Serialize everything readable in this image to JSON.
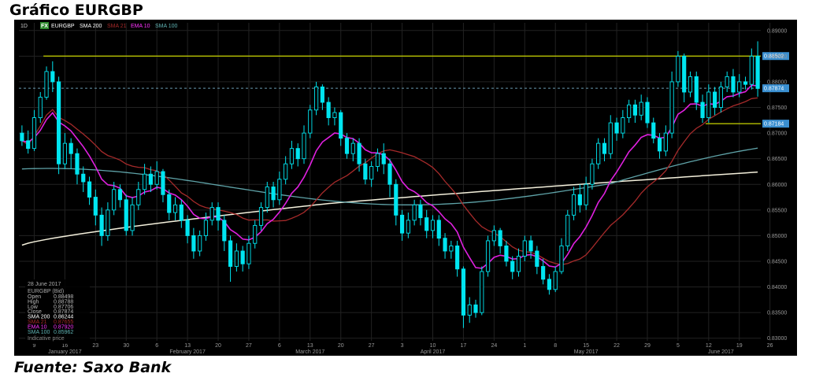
{
  "page": {
    "title": "Gráfico EURGBP",
    "source": "Fuente: Saxo Bank"
  },
  "toolbar": {
    "timeframe": "1D",
    "fx_badge": "FX",
    "symbol": "EURGBP",
    "indicators": [
      {
        "label": "SMA 200",
        "color": "#ffffff"
      },
      {
        "label": "SMA 21",
        "color": "#a52a2a"
      },
      {
        "label": "EMA 10",
        "color": "#ff33ff"
      },
      {
        "label": "SMA 100",
        "color": "#5fb3b3"
      }
    ]
  },
  "info_panel": {
    "date": "28 June 2017",
    "instrument": "EURGBP (Bid)",
    "rows": [
      {
        "label": "Open",
        "value": "0.88498",
        "color": "#bbbbbb"
      },
      {
        "label": "High",
        "value": "0.88788",
        "color": "#bbbbbb"
      },
      {
        "label": "Low",
        "value": "0.87706",
        "color": "#bbbbbb"
      },
      {
        "label": "Close",
        "value": "0.87874",
        "color": "#bbbbbb"
      },
      {
        "label": "SMA 200",
        "value": "0.86244",
        "color": "#ffffff"
      },
      {
        "label": "SMA 21",
        "value": "0.87655",
        "color": "#a52a2a"
      },
      {
        "label": "EMA 10",
        "value": "0.87920",
        "color": "#ff33ff"
      },
      {
        "label": "SMA 100",
        "value": "0.85962",
        "color": "#5fb3b3"
      }
    ],
    "footer": "Indicative price"
  },
  "price_tags": [
    {
      "label": "0.88502",
      "value": 0.88502
    },
    {
      "label": "0.87874",
      "value": 0.87874
    },
    {
      "label": "0.87184",
      "value": 0.87184
    }
  ],
  "colors": {
    "background": "#000000",
    "candle": "#00e5f0",
    "hline": "#c8d400",
    "sma200": "#f4f0dc",
    "sma21": "#a52a2a",
    "ema10": "#e020e0",
    "sma100": "#5fa3a8",
    "grid": "#222222"
  },
  "chart_data": {
    "type": "candlestick",
    "title": "Gráfico EURGBP",
    "ylim": [
      0.8295,
      0.8915
    ],
    "y_ticks": [
      "0.89000",
      "0.88500",
      "0.88000",
      "0.87500",
      "0.87000",
      "0.86500",
      "0.86000",
      "0.85500",
      "0.85000",
      "0.84500",
      "0.84000",
      "0.83500",
      "0.83000"
    ],
    "y_tick_values": [
      0.89,
      0.885,
      0.88,
      0.875,
      0.87,
      0.865,
      0.86,
      0.855,
      0.85,
      0.845,
      0.84,
      0.835,
      0.83
    ],
    "x_tick_labels": [
      {
        "label": "9",
        "i": 2
      },
      {
        "label": "16",
        "i": 7
      },
      {
        "label": "23",
        "i": 12
      },
      {
        "label": "30",
        "i": 17
      },
      {
        "label": "6",
        "i": 22
      },
      {
        "label": "13",
        "i": 27
      },
      {
        "label": "20",
        "i": 32
      },
      {
        "label": "27",
        "i": 37
      },
      {
        "label": "6",
        "i": 42
      },
      {
        "label": "13",
        "i": 47
      },
      {
        "label": "20",
        "i": 52
      },
      {
        "label": "27",
        "i": 57
      },
      {
        "label": "3",
        "i": 62
      },
      {
        "label": "10",
        "i": 67
      },
      {
        "label": "17",
        "i": 72
      },
      {
        "label": "24",
        "i": 77
      },
      {
        "label": "1",
        "i": 82
      },
      {
        "label": "8",
        "i": 87
      },
      {
        "label": "15",
        "i": 92
      },
      {
        "label": "22",
        "i": 97
      },
      {
        "label": "29",
        "i": 102
      },
      {
        "label": "5",
        "i": 107
      },
      {
        "label": "12",
        "i": 112
      },
      {
        "label": "19",
        "i": 117
      },
      {
        "label": "26",
        "i": 122
      }
    ],
    "month_labels": [
      {
        "label": "January 2017",
        "i": 7
      },
      {
        "label": "February 2017",
        "i": 27
      },
      {
        "label": "March 2017",
        "i": 47
      },
      {
        "label": "April 2017",
        "i": 67
      },
      {
        "label": "May 2017",
        "i": 92
      },
      {
        "label": "June 2017",
        "i": 114
      }
    ],
    "horizontal_lines": [
      {
        "value": 0.88502,
        "from_i": 4,
        "label": "0.88502"
      },
      {
        "value": 0.87184,
        "from_i": 112,
        "label": "0.87184"
      }
    ],
    "dashed_line": {
      "value": 0.87874,
      "label": "0.87874"
    },
    "candles": [
      [
        0.87,
        0.8685,
        0.8715,
        0.8675
      ],
      [
        0.8685,
        0.867,
        0.8705,
        0.866
      ],
      [
        0.867,
        0.873,
        0.8745,
        0.8665
      ],
      [
        0.873,
        0.877,
        0.878,
        0.872
      ],
      [
        0.877,
        0.882,
        0.883,
        0.8765
      ],
      [
        0.882,
        0.88,
        0.884,
        0.878
      ],
      [
        0.88,
        0.864,
        0.881,
        0.862
      ],
      [
        0.864,
        0.868,
        0.87,
        0.863
      ],
      [
        0.868,
        0.866,
        0.869,
        0.863
      ],
      [
        0.866,
        0.862,
        0.867,
        0.86
      ],
      [
        0.862,
        0.8605,
        0.8635,
        0.8585
      ],
      [
        0.8605,
        0.8575,
        0.8615,
        0.856
      ],
      [
        0.8575,
        0.854,
        0.859,
        0.852
      ],
      [
        0.854,
        0.85,
        0.8555,
        0.848
      ],
      [
        0.85,
        0.855,
        0.8565,
        0.849
      ],
      [
        0.855,
        0.859,
        0.8605,
        0.854
      ],
      [
        0.859,
        0.857,
        0.86,
        0.8555
      ],
      [
        0.857,
        0.851,
        0.858,
        0.85
      ],
      [
        0.851,
        0.856,
        0.8575,
        0.85
      ],
      [
        0.856,
        0.859,
        0.8605,
        0.855
      ],
      [
        0.859,
        0.862,
        0.864,
        0.858
      ],
      [
        0.862,
        0.86,
        0.8635,
        0.8585
      ],
      [
        0.86,
        0.8625,
        0.8645,
        0.859
      ],
      [
        0.8625,
        0.858,
        0.863,
        0.8565
      ],
      [
        0.858,
        0.8545,
        0.859,
        0.853
      ],
      [
        0.8545,
        0.856,
        0.8575,
        0.853
      ],
      [
        0.856,
        0.853,
        0.857,
        0.8515
      ],
      [
        0.853,
        0.85,
        0.854,
        0.8485
      ],
      [
        0.85,
        0.847,
        0.8515,
        0.8455
      ],
      [
        0.847,
        0.85,
        0.851,
        0.846
      ],
      [
        0.85,
        0.853,
        0.8545,
        0.849
      ],
      [
        0.853,
        0.8555,
        0.8565,
        0.852
      ],
      [
        0.8555,
        0.853,
        0.8565,
        0.851
      ],
      [
        0.853,
        0.849,
        0.854,
        0.847
      ],
      [
        0.849,
        0.844,
        0.85,
        0.841
      ],
      [
        0.844,
        0.847,
        0.8485,
        0.843
      ],
      [
        0.847,
        0.8445,
        0.848,
        0.843
      ],
      [
        0.8445,
        0.8485,
        0.85,
        0.8435
      ],
      [
        0.8485,
        0.852,
        0.853,
        0.8475
      ],
      [
        0.852,
        0.8555,
        0.8565,
        0.851
      ],
      [
        0.8555,
        0.8595,
        0.8605,
        0.8545
      ],
      [
        0.8595,
        0.857,
        0.8605,
        0.8555
      ],
      [
        0.857,
        0.861,
        0.8625,
        0.856
      ],
      [
        0.861,
        0.864,
        0.8655,
        0.86
      ],
      [
        0.864,
        0.867,
        0.8685,
        0.863
      ],
      [
        0.867,
        0.865,
        0.868,
        0.8635
      ],
      [
        0.865,
        0.87,
        0.8715,
        0.864
      ],
      [
        0.87,
        0.8745,
        0.8755,
        0.869
      ],
      [
        0.8745,
        0.879,
        0.88,
        0.8735
      ],
      [
        0.879,
        0.876,
        0.8795,
        0.8745
      ],
      [
        0.876,
        0.873,
        0.877,
        0.8715
      ],
      [
        0.873,
        0.874,
        0.875,
        0.8715
      ],
      [
        0.874,
        0.869,
        0.8745,
        0.8675
      ],
      [
        0.869,
        0.866,
        0.87,
        0.865
      ],
      [
        0.866,
        0.868,
        0.869,
        0.8645
      ],
      [
        0.868,
        0.864,
        0.869,
        0.8625
      ],
      [
        0.864,
        0.861,
        0.865,
        0.86
      ],
      [
        0.861,
        0.8635,
        0.8645,
        0.8595
      ],
      [
        0.8635,
        0.866,
        0.867,
        0.8625
      ],
      [
        0.866,
        0.864,
        0.868,
        0.862
      ],
      [
        0.864,
        0.86,
        0.865,
        0.8575
      ],
      [
        0.86,
        0.854,
        0.861,
        0.852
      ],
      [
        0.854,
        0.8505,
        0.855,
        0.849
      ],
      [
        0.8505,
        0.853,
        0.8545,
        0.8495
      ],
      [
        0.853,
        0.856,
        0.857,
        0.852
      ],
      [
        0.856,
        0.8535,
        0.857,
        0.852
      ],
      [
        0.8535,
        0.851,
        0.855,
        0.8495
      ],
      [
        0.851,
        0.853,
        0.854,
        0.8495
      ],
      [
        0.853,
        0.8495,
        0.854,
        0.848
      ],
      [
        0.8495,
        0.847,
        0.8505,
        0.8455
      ],
      [
        0.847,
        0.848,
        0.849,
        0.8455
      ],
      [
        0.848,
        0.8435,
        0.849,
        0.842
      ],
      [
        0.8435,
        0.8345,
        0.844,
        0.832
      ],
      [
        0.8345,
        0.8365,
        0.838,
        0.833
      ],
      [
        0.8365,
        0.835,
        0.8375,
        0.834
      ],
      [
        0.835,
        0.843,
        0.844,
        0.8345
      ],
      [
        0.843,
        0.849,
        0.85,
        0.842
      ],
      [
        0.849,
        0.851,
        0.852,
        0.848
      ],
      [
        0.851,
        0.848,
        0.8515,
        0.8465
      ],
      [
        0.848,
        0.845,
        0.849,
        0.844
      ],
      [
        0.845,
        0.843,
        0.846,
        0.8415
      ],
      [
        0.843,
        0.846,
        0.8475,
        0.842
      ],
      [
        0.846,
        0.849,
        0.85,
        0.845
      ],
      [
        0.849,
        0.847,
        0.85,
        0.8455
      ],
      [
        0.847,
        0.844,
        0.848,
        0.8425
      ],
      [
        0.844,
        0.8415,
        0.8455,
        0.8405
      ],
      [
        0.8415,
        0.8395,
        0.8425,
        0.8385
      ],
      [
        0.8395,
        0.843,
        0.844,
        0.839
      ],
      [
        0.843,
        0.848,
        0.8495,
        0.8425
      ],
      [
        0.848,
        0.854,
        0.855,
        0.847
      ],
      [
        0.854,
        0.858,
        0.8595,
        0.853
      ],
      [
        0.858,
        0.856,
        0.86,
        0.8545
      ],
      [
        0.856,
        0.86,
        0.8615,
        0.855
      ],
      [
        0.86,
        0.864,
        0.865,
        0.859
      ],
      [
        0.864,
        0.868,
        0.869,
        0.863
      ],
      [
        0.868,
        0.866,
        0.869,
        0.8645
      ],
      [
        0.866,
        0.872,
        0.8735,
        0.865
      ],
      [
        0.872,
        0.87,
        0.873,
        0.8685
      ],
      [
        0.87,
        0.873,
        0.8745,
        0.869
      ],
      [
        0.873,
        0.8755,
        0.8765,
        0.872
      ],
      [
        0.8755,
        0.8735,
        0.8765,
        0.872
      ],
      [
        0.8735,
        0.876,
        0.8775,
        0.8725
      ],
      [
        0.876,
        0.872,
        0.877,
        0.871
      ],
      [
        0.872,
        0.869,
        0.873,
        0.868
      ],
      [
        0.869,
        0.8665,
        0.87,
        0.865
      ],
      [
        0.8665,
        0.87,
        0.8715,
        0.8655
      ],
      [
        0.87,
        0.88,
        0.882,
        0.869
      ],
      [
        0.88,
        0.885,
        0.886,
        0.879
      ],
      [
        0.885,
        0.878,
        0.8855,
        0.876
      ],
      [
        0.878,
        0.881,
        0.882,
        0.877
      ],
      [
        0.881,
        0.876,
        0.882,
        0.8745
      ],
      [
        0.876,
        0.873,
        0.8775,
        0.872
      ],
      [
        0.873,
        0.878,
        0.8795,
        0.872
      ],
      [
        0.878,
        0.875,
        0.879,
        0.8735
      ],
      [
        0.875,
        0.879,
        0.88,
        0.874
      ],
      [
        0.879,
        0.881,
        0.882,
        0.878
      ],
      [
        0.881,
        0.878,
        0.8825,
        0.877
      ],
      [
        0.878,
        0.88,
        0.8815,
        0.877
      ],
      [
        0.88,
        0.8795,
        0.881,
        0.8785
      ],
      [
        0.8795,
        0.885,
        0.8865,
        0.8785
      ],
      [
        0.885,
        0.8787,
        0.8879,
        0.8771
      ]
    ]
  }
}
